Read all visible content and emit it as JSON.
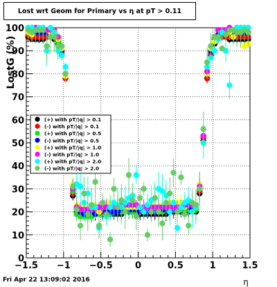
{
  "title": "Lost wrt Geom for Primary vs   η at pT > 0.11",
  "footer_text": "Fri Apr 22 13:09:02 2016",
  "chart_data": {
    "type": "scatter",
    "title": "Lost wrt Geom for Primary vs   η at pT > 0.11",
    "xlabel": "η",
    "ylabel": "LostG (%)",
    "xlim": [
      -1.5,
      1.5
    ],
    "ylim": [
      0,
      100
    ],
    "x_ticks": [
      -1.5,
      -1,
      -0.5,
      0,
      0.5,
      1,
      1.5
    ],
    "x_tick_labels": [
      "−1.5",
      "−1",
      "−0.5",
      "0",
      "0.5",
      "1",
      "1.5"
    ],
    "y_ticks": [
      0,
      10,
      20,
      30,
      40,
      50,
      60,
      70,
      80,
      90,
      100
    ],
    "y_tick_labels": [
      "0",
      "10",
      "20",
      "30",
      "40",
      "50",
      "60",
      "70",
      "80",
      "90",
      "100"
    ],
    "grid": true,
    "legend_position": "middle-left",
    "series": [
      {
        "name": "(+) with pT/|q| > 0.1",
        "color": "#000000",
        "x": [
          -1.475,
          -1.425,
          -1.375,
          -1.325,
          -1.275,
          -1.225,
          -1.175,
          -1.125,
          -1.075,
          -1.025,
          -0.975,
          -0.925,
          -0.875,
          -0.825,
          -0.775,
          -0.725,
          -0.675,
          -0.625,
          -0.575,
          -0.525,
          -0.475,
          -0.425,
          -0.375,
          -0.325,
          -0.275,
          -0.225,
          -0.175,
          -0.125,
          -0.075,
          -0.025,
          0.025,
          0.075,
          0.125,
          0.175,
          0.225,
          0.275,
          0.325,
          0.375,
          0.425,
          0.475,
          0.525,
          0.575,
          0.625,
          0.675,
          0.725,
          0.775,
          0.825,
          0.875,
          0.925,
          0.975,
          1.025,
          1.075,
          1.125,
          1.175,
          1.225,
          1.275,
          1.325,
          1.375,
          1.425,
          1.475
        ],
        "y": [
          96,
          95,
          95,
          95,
          95,
          96,
          96,
          95,
          93,
          88,
          78,
          52,
          27,
          20,
          19,
          19,
          19,
          19,
          19,
          19,
          19,
          19,
          19,
          19,
          19,
          19,
          20,
          20,
          20,
          20,
          19,
          19,
          19,
          19,
          19,
          19,
          19,
          19,
          20,
          20,
          20,
          20,
          20,
          20,
          20,
          20,
          28,
          51,
          78,
          88,
          93,
          95,
          96,
          96,
          95,
          95,
          95,
          95,
          95,
          95
        ]
      },
      {
        "name": "(-) with pT/|q| > 0.1",
        "color": "#ff0000",
        "x": [
          -1.475,
          -1.425,
          -1.375,
          -1.325,
          -1.275,
          -1.225,
          -1.175,
          -1.125,
          -1.075,
          -1.025,
          -0.975,
          -0.925,
          -0.875,
          -0.825,
          -0.775,
          -0.725,
          -0.675,
          -0.625,
          -0.575,
          -0.525,
          -0.475,
          -0.425,
          -0.375,
          -0.325,
          -0.275,
          -0.225,
          -0.175,
          -0.125,
          -0.075,
          -0.025,
          0.025,
          0.075,
          0.125,
          0.175,
          0.225,
          0.275,
          0.325,
          0.375,
          0.425,
          0.475,
          0.525,
          0.575,
          0.625,
          0.675,
          0.725,
          0.775,
          0.825,
          0.875,
          0.925,
          0.975,
          1.025,
          1.075,
          1.125,
          1.175,
          1.225,
          1.275,
          1.325,
          1.375,
          1.425,
          1.475
        ],
        "y": [
          97,
          96,
          96,
          96,
          96,
          96,
          96,
          96,
          94,
          89,
          78,
          53,
          28,
          21,
          20,
          20,
          20,
          20,
          20,
          20,
          20,
          20,
          20,
          20,
          20,
          21,
          21,
          21,
          21,
          21,
          20,
          20,
          20,
          20,
          20,
          20,
          20,
          21,
          21,
          21,
          21,
          21,
          21,
          21,
          21,
          21,
          29,
          52,
          78,
          89,
          94,
          96,
          96,
          96,
          96,
          96,
          96,
          96,
          96,
          96
        ]
      },
      {
        "name": "(+) with pT/|q| > 0.5",
        "color": "#00ee00",
        "x": [
          -1.475,
          -1.425,
          -1.375,
          -1.325,
          -1.275,
          -1.225,
          -1.175,
          -1.125,
          -1.075,
          -1.025,
          -0.975,
          -0.925,
          -0.875,
          -0.825,
          -0.775,
          -0.725,
          -0.675,
          -0.625,
          -0.575,
          -0.525,
          -0.475,
          -0.425,
          -0.375,
          -0.325,
          -0.275,
          -0.225,
          -0.175,
          -0.125,
          -0.075,
          -0.025,
          0.025,
          0.075,
          0.125,
          0.175,
          0.225,
          0.275,
          0.325,
          0.375,
          0.425,
          0.475,
          0.525,
          0.575,
          0.625,
          0.675,
          0.725,
          0.775,
          0.825,
          0.875,
          0.925,
          0.975,
          1.025,
          1.075,
          1.125,
          1.175,
          1.225,
          1.275,
          1.325,
          1.375,
          1.425,
          1.475
        ],
        "y": [
          99,
          98,
          98,
          99,
          98,
          98,
          98,
          97,
          94,
          90,
          80,
          52,
          29,
          19,
          18,
          18,
          18,
          18,
          19,
          19,
          19,
          19,
          19,
          20,
          20,
          20,
          20,
          20,
          20,
          20,
          20,
          20,
          20,
          20,
          20,
          20,
          20,
          21,
          21,
          21,
          21,
          21,
          21,
          21,
          21,
          21,
          30,
          50,
          80,
          90,
          94,
          97,
          98,
          98,
          98,
          98,
          99,
          98,
          98,
          98
        ]
      },
      {
        "name": "(-) with pT/|q| > 0.5",
        "color": "#0000ff",
        "x": [
          -1.475,
          -1.425,
          -1.375,
          -1.325,
          -1.275,
          -1.225,
          -1.175,
          -1.125,
          -1.075,
          -1.025,
          -0.975,
          -0.925,
          -0.875,
          -0.825,
          -0.775,
          -0.725,
          -0.675,
          -0.625,
          -0.575,
          -0.525,
          -0.475,
          -0.425,
          -0.375,
          -0.325,
          -0.275,
          -0.225,
          -0.175,
          -0.125,
          -0.075,
          -0.025,
          0.025,
          0.075,
          0.125,
          0.175,
          0.225,
          0.275,
          0.325,
          0.375,
          0.425,
          0.475,
          0.525,
          0.575,
          0.625,
          0.675,
          0.725,
          0.775,
          0.825,
          0.875,
          0.925,
          0.975,
          1.025,
          1.075,
          1.125,
          1.175,
          1.225,
          1.275,
          1.325,
          1.375,
          1.425,
          1.475
        ],
        "y": [
          98,
          98,
          98,
          98,
          98,
          98,
          98,
          97,
          95,
          90,
          80,
          54,
          30,
          21,
          20,
          19,
          20,
          20,
          19,
          20,
          20,
          20,
          20,
          20,
          20,
          21,
          21,
          21,
          21,
          21,
          20,
          20,
          20,
          20,
          20,
          20,
          21,
          21,
          21,
          21,
          22,
          22,
          22,
          22,
          22,
          22,
          30,
          53,
          80,
          90,
          95,
          97,
          98,
          98,
          98,
          98,
          98,
          98,
          98,
          98
        ]
      },
      {
        "name": "(+) with pT/|q| > 1.0",
        "color": "#ffff00",
        "x": [
          -1.475,
          -1.425,
          -1.375,
          -1.325,
          -1.275,
          -1.225,
          -1.175,
          -1.125,
          -1.075,
          -1.025,
          -0.975,
          -0.925,
          -0.875,
          -0.825,
          -0.775,
          -0.725,
          -0.675,
          -0.625,
          -0.575,
          -0.525,
          -0.475,
          -0.425,
          -0.375,
          -0.325,
          -0.275,
          -0.225,
          -0.175,
          -0.125,
          -0.075,
          -0.025,
          0.025,
          0.075,
          0.125,
          0.175,
          0.225,
          0.275,
          0.325,
          0.375,
          0.425,
          0.475,
          0.525,
          0.575,
          0.625,
          0.675,
          0.725,
          0.775,
          0.825,
          0.875,
          0.925,
          0.975,
          1.025,
          1.075,
          1.125,
          1.175,
          1.225,
          1.275,
          1.325,
          1.375,
          1.425,
          1.475
        ],
        "y": [
          98,
          97,
          99,
          99,
          99,
          99,
          98,
          97,
          95,
          91,
          79,
          50,
          32,
          23,
          22,
          22,
          21,
          21,
          23,
          20,
          22,
          22,
          24,
          23,
          22,
          23,
          22,
          22,
          22,
          22,
          22,
          22,
          22,
          23,
          22,
          22,
          23,
          24,
          24,
          23,
          24,
          24,
          22,
          23,
          24,
          22,
          32,
          50,
          80,
          91,
          94,
          96,
          98,
          98,
          98,
          96,
          99,
          98,
          92,
          93
        ]
      },
      {
        "name": "(-) with pT/|q| > 1.0",
        "color": "#ff00ff",
        "x": [
          -1.475,
          -1.425,
          -1.375,
          -1.325,
          -1.275,
          -1.225,
          -1.175,
          -1.125,
          -1.075,
          -1.025,
          -0.975,
          -0.925,
          -0.875,
          -0.825,
          -0.775,
          -0.725,
          -0.675,
          -0.625,
          -0.575,
          -0.525,
          -0.475,
          -0.425,
          -0.375,
          -0.325,
          -0.275,
          -0.225,
          -0.175,
          -0.125,
          -0.075,
          -0.025,
          0.025,
          0.075,
          0.125,
          0.175,
          0.225,
          0.275,
          0.325,
          0.375,
          0.425,
          0.475,
          0.525,
          0.575,
          0.625,
          0.675,
          0.725,
          0.775,
          0.825,
          0.875,
          0.925,
          0.975,
          1.025,
          1.075,
          1.125,
          1.175,
          1.225,
          1.275,
          1.325,
          1.375,
          1.425,
          1.475
        ],
        "y": [
          100,
          100,
          100,
          99,
          99,
          99,
          99,
          99,
          96,
          92,
          80,
          53,
          30,
          22,
          21,
          21,
          21,
          21,
          22,
          22,
          22,
          22,
          22,
          22,
          22,
          23,
          23,
          23,
          23,
          23,
          22,
          22,
          22,
          22,
          22,
          22,
          22,
          22,
          22,
          22,
          22,
          22,
          23,
          23,
          23,
          23,
          31,
          53,
          81,
          92,
          96,
          99,
          99,
          99,
          100,
          99,
          100,
          100,
          100,
          100
        ]
      },
      {
        "name": "(+) with pT/|q| > 2.0",
        "color": "#00ffff",
        "x": [
          -1.475,
          -1.425,
          -1.375,
          -1.325,
          -1.275,
          -1.225,
          -1.175,
          -1.125,
          -1.075,
          -1.025,
          -0.975,
          -0.925,
          -0.875,
          -0.825,
          -0.775,
          -0.725,
          -0.675,
          -0.625,
          -0.575,
          -0.525,
          -0.475,
          -0.425,
          -0.375,
          -0.325,
          -0.275,
          -0.225,
          -0.175,
          -0.125,
          -0.075,
          -0.025,
          0.025,
          0.075,
          0.125,
          0.175,
          0.225,
          0.275,
          0.325,
          0.375,
          0.425,
          0.475,
          0.525,
          0.575,
          0.625,
          0.675,
          0.725,
          0.775,
          0.825,
          0.875,
          0.925,
          0.975,
          1.025,
          1.075,
          1.125,
          1.175,
          1.225,
          1.275,
          1.325,
          1.375,
          1.425,
          1.475
        ],
        "y": [
          100,
          100,
          99,
          100,
          100,
          90,
          100,
          98,
          90,
          88,
          83,
          57,
          44,
          32,
          31,
          24,
          28,
          22,
          22,
          13,
          24,
          18,
          22,
          24,
          23,
          22,
          24,
          26,
          27,
          36,
          22,
          20,
          23,
          25,
          26,
          30,
          29,
          27,
          20,
          24,
          13,
          22,
          24,
          25,
          20,
          22,
          30,
          50,
          83,
          87,
          90,
          95,
          98,
          90,
          75,
          99,
          100,
          100,
          100,
          100
        ]
      },
      {
        "name": "(-) with pT/|q| > 2.0",
        "color": "#66cc66",
        "x": [
          -1.475,
          -1.425,
          -1.375,
          -1.325,
          -1.275,
          -1.225,
          -1.175,
          -1.125,
          -1.075,
          -1.025,
          -0.975,
          -0.925,
          -0.875,
          -0.825,
          -0.775,
          -0.725,
          -0.675,
          -0.625,
          -0.575,
          -0.525,
          -0.475,
          -0.425,
          -0.375,
          -0.325,
          -0.275,
          -0.225,
          -0.175,
          -0.125,
          -0.075,
          -0.025,
          0.025,
          0.075,
          0.125,
          0.175,
          0.225,
          0.275,
          0.325,
          0.375,
          0.425,
          0.475,
          0.525,
          0.575,
          0.625,
          0.675,
          0.725,
          0.775,
          0.825,
          0.875,
          0.925,
          0.975,
          1.025,
          1.075,
          1.125,
          1.175,
          1.225,
          1.275,
          1.325,
          1.375,
          1.425,
          1.475
        ],
        "y": [
          99,
          98,
          99,
          99,
          99,
          92,
          96,
          96,
          92,
          92,
          80,
          55,
          31,
          21,
          14,
          28,
          19,
          23,
          33,
          14,
          24,
          19,
          8,
          30,
          22,
          25,
          20,
          36,
          25,
          18,
          26,
          30,
          10,
          20,
          26,
          20,
          15,
          24,
          28,
          37,
          20,
          35,
          19,
          14,
          24,
          23,
          30,
          56,
          85,
          92,
          96,
          96,
          91,
          97,
          99,
          99,
          98,
          98,
          99,
          98
        ]
      }
    ]
  }
}
